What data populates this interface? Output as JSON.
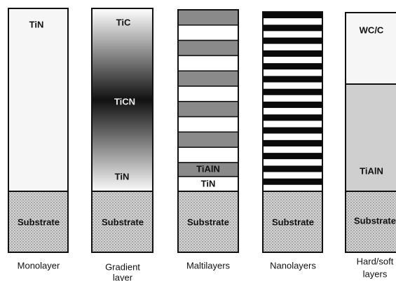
{
  "columns": [
    {
      "layers": [
        "TiN"
      ],
      "substrate": "Substrate",
      "caption": [
        "Monolayer"
      ]
    },
    {
      "layers": [
        "TiC",
        "TiCN",
        "TiN"
      ],
      "substrate": "Substrate",
      "caption": [
        "Gradient",
        "layer"
      ]
    },
    {
      "layers": [
        "TiAlN",
        "TiN"
      ],
      "substrate": "Substrate",
      "caption": [
        "Maltilayers"
      ]
    },
    {
      "layers": [],
      "substrate": "Substrate",
      "caption": [
        "Nanolayers"
      ]
    },
    {
      "layers": [
        "WC/C",
        "TiAlN"
      ],
      "substrate": "Substrate",
      "caption": [
        "Hard/soft",
        "layers"
      ]
    }
  ]
}
